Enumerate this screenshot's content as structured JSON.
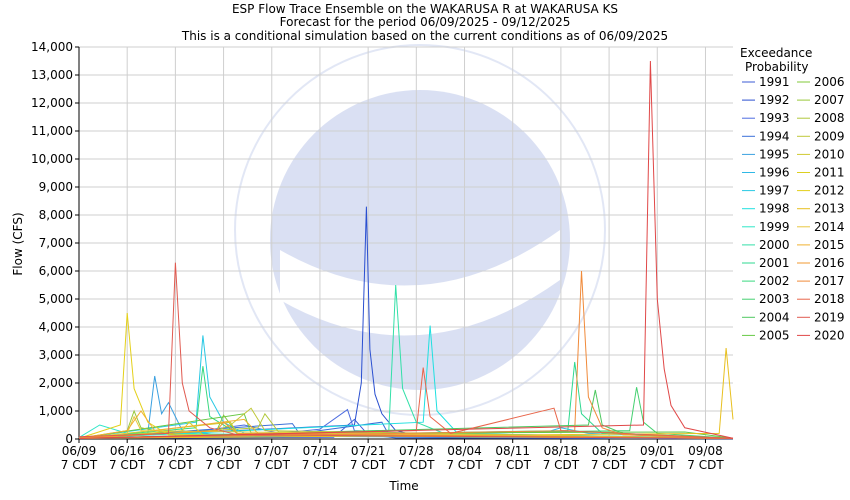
{
  "chart_data": {
    "type": "line",
    "title_lines": [
      "ESP Flow Trace Ensemble on the WAKARUSA R at WAKARUSA KS",
      "Forecast for the period 06/09/2025 - 09/12/2025",
      "This is a conditional simulation based on the current conditions as of 06/09/2025"
    ],
    "xlabel": "Time",
    "ylabel": "Flow (CFS)",
    "xlim": [
      "2025-06-09",
      "2025-09-12"
    ],
    "ylim": [
      0,
      14000
    ],
    "y_ticks": [
      0,
      1000,
      2000,
      3000,
      4000,
      5000,
      6000,
      7000,
      8000,
      9000,
      10000,
      11000,
      12000,
      13000,
      14000
    ],
    "y_tick_labels": [
      "0",
      "1,000",
      "2,000",
      "3,000",
      "4,000",
      "5,000",
      "6,000",
      "7,000",
      "8,000",
      "9,000",
      "10,000",
      "11,000",
      "12,000",
      "13,000",
      "14,000"
    ],
    "x_ticks": [
      {
        "date": "2025-06-09",
        "label": "06/09",
        "sub": "7 CDT"
      },
      {
        "date": "2025-06-16",
        "label": "06/16",
        "sub": "7 CDT"
      },
      {
        "date": "2025-06-23",
        "label": "06/23",
        "sub": "7 CDT"
      },
      {
        "date": "2025-06-30",
        "label": "06/30",
        "sub": "7 CDT"
      },
      {
        "date": "2025-07-07",
        "label": "07/07",
        "sub": "7 CDT"
      },
      {
        "date": "2025-07-14",
        "label": "07/14",
        "sub": "7 CDT"
      },
      {
        "date": "2025-07-21",
        "label": "07/21",
        "sub": "7 CDT"
      },
      {
        "date": "2025-07-28",
        "label": "07/28",
        "sub": "7 CDT"
      },
      {
        "date": "2025-08-04",
        "label": "08/04",
        "sub": "7 CDT"
      },
      {
        "date": "2025-08-11",
        "label": "08/11",
        "sub": "7 CDT"
      },
      {
        "date": "2025-08-18",
        "label": "08/18",
        "sub": "7 CDT"
      },
      {
        "date": "2025-08-25",
        "label": "08/25",
        "sub": "7 CDT"
      },
      {
        "date": "2025-09-01",
        "label": "09/01",
        "sub": "7 CDT"
      },
      {
        "date": "2025-09-08",
        "label": "09/08",
        "sub": "7 CDT"
      }
    ],
    "grid": true,
    "legend_title": [
      "Exceedance",
      "Probability"
    ],
    "legend_placement": "right",
    "series": [
      {
        "name": "1991",
        "color": "#3b5bd6",
        "points": [
          [
            "2025-06-09",
            20
          ],
          [
            "2025-07-16",
            60
          ],
          [
            "2025-07-19",
            700
          ],
          [
            "2025-07-21",
            150
          ],
          [
            "2025-07-25",
            40
          ],
          [
            "2025-09-12",
            10
          ]
        ]
      },
      {
        "name": "1992",
        "color": "#2a4fd0",
        "points": [
          [
            "2025-06-09",
            30
          ],
          [
            "2025-07-19",
            500
          ],
          [
            "2025-07-20",
            2000
          ],
          [
            "2025-07-20T18:00",
            8300
          ],
          [
            "2025-07-21T06:00",
            3200
          ],
          [
            "2025-07-22",
            1600
          ],
          [
            "2025-07-23",
            900
          ],
          [
            "2025-07-25",
            300
          ],
          [
            "2025-07-28",
            120
          ],
          [
            "2025-09-12",
            20
          ]
        ]
      },
      {
        "name": "1993",
        "color": "#4d6ce0",
        "points": [
          [
            "2025-06-09",
            40
          ],
          [
            "2025-06-27",
            300
          ],
          [
            "2025-07-03",
            500
          ],
          [
            "2025-07-08",
            200
          ],
          [
            "2025-07-14",
            350
          ],
          [
            "2025-07-18",
            1050
          ],
          [
            "2025-07-19",
            300
          ],
          [
            "2025-08-01",
            150
          ],
          [
            "2025-09-12",
            30
          ]
        ]
      },
      {
        "name": "1994",
        "color": "#3a6fd8",
        "points": [
          [
            "2025-06-09",
            20
          ],
          [
            "2025-07-10",
            550
          ],
          [
            "2025-07-11",
            200
          ],
          [
            "2025-07-23",
            600
          ],
          [
            "2025-07-24",
            150
          ],
          [
            "2025-09-12",
            20
          ]
        ]
      },
      {
        "name": "1995",
        "color": "#3aa0e0",
        "points": [
          [
            "2025-06-09",
            40
          ],
          [
            "2025-06-19",
            200
          ],
          [
            "2025-06-20",
            2250
          ],
          [
            "2025-06-21",
            900
          ],
          [
            "2025-06-22",
            1300
          ],
          [
            "2025-06-24",
            300
          ],
          [
            "2025-07-01",
            100
          ],
          [
            "2025-09-12",
            30
          ]
        ]
      },
      {
        "name": "1996",
        "color": "#2fb8e6",
        "points": [
          [
            "2025-06-09",
            20
          ],
          [
            "2025-08-16",
            250
          ],
          [
            "2025-08-18",
            400
          ],
          [
            "2025-08-22",
            200
          ],
          [
            "2025-09-12",
            20
          ]
        ]
      },
      {
        "name": "1997",
        "color": "#28c8e4",
        "points": [
          [
            "2025-06-09",
            30
          ],
          [
            "2025-06-26",
            600
          ],
          [
            "2025-06-27",
            3700
          ],
          [
            "2025-06-28",
            1500
          ],
          [
            "2025-06-30",
            600
          ],
          [
            "2025-07-03",
            200
          ],
          [
            "2025-09-12",
            20
          ]
        ]
      },
      {
        "name": "1998",
        "color": "#1fe0e0",
        "points": [
          [
            "2025-06-09",
            20
          ],
          [
            "2025-07-29",
            600
          ],
          [
            "2025-07-30",
            4050
          ],
          [
            "2025-07-31",
            1000
          ],
          [
            "2025-08-03",
            200
          ],
          [
            "2025-09-12",
            20
          ]
        ]
      },
      {
        "name": "1999",
        "color": "#2ee6c8",
        "points": [
          [
            "2025-06-09",
            50
          ],
          [
            "2025-06-12",
            500
          ],
          [
            "2025-06-16",
            200
          ],
          [
            "2025-09-12",
            30
          ]
        ]
      },
      {
        "name": "2000",
        "color": "#33e0a8",
        "points": [
          [
            "2025-06-09",
            20
          ],
          [
            "2025-07-24",
            300
          ],
          [
            "2025-07-25",
            5500
          ],
          [
            "2025-07-26",
            1800
          ],
          [
            "2025-07-28",
            600
          ],
          [
            "2025-08-01",
            200
          ],
          [
            "2025-09-12",
            30
          ]
        ]
      },
      {
        "name": "2001",
        "color": "#2fd890",
        "points": [
          [
            "2025-06-09",
            20
          ],
          [
            "2025-08-19",
            300
          ],
          [
            "2025-08-20",
            2750
          ],
          [
            "2025-08-21",
            900
          ],
          [
            "2025-08-24",
            200
          ],
          [
            "2025-09-12",
            20
          ]
        ]
      },
      {
        "name": "2002",
        "color": "#3ad880",
        "points": [
          [
            "2025-06-09",
            30
          ],
          [
            "2025-06-26",
            400
          ],
          [
            "2025-06-27",
            2600
          ],
          [
            "2025-06-28",
            800
          ],
          [
            "2025-07-02",
            200
          ],
          [
            "2025-09-12",
            20
          ]
        ]
      },
      {
        "name": "2003",
        "color": "#45d070",
        "points": [
          [
            "2025-06-09",
            30
          ],
          [
            "2025-08-28",
            300
          ],
          [
            "2025-08-29",
            1850
          ],
          [
            "2025-08-30",
            600
          ],
          [
            "2025-09-01",
            200
          ],
          [
            "2025-09-12",
            20
          ]
        ]
      },
      {
        "name": "2004",
        "color": "#4ec860",
        "points": [
          [
            "2025-06-09",
            20
          ],
          [
            "2025-08-22",
            500
          ],
          [
            "2025-08-23",
            1750
          ],
          [
            "2025-08-24",
            500
          ],
          [
            "2025-08-27",
            200
          ],
          [
            "2025-09-12",
            20
          ]
        ]
      },
      {
        "name": "2005",
        "color": "#66c845",
        "points": [
          [
            "2025-06-09",
            30
          ],
          [
            "2025-07-03",
            900
          ],
          [
            "2025-07-04",
            200
          ],
          [
            "2025-09-05",
            250
          ],
          [
            "2025-09-12",
            30
          ]
        ]
      },
      {
        "name": "2006",
        "color": "#80c83a",
        "points": [
          [
            "2025-06-09",
            20
          ],
          [
            "2025-06-29",
            300
          ],
          [
            "2025-06-30",
            850
          ],
          [
            "2025-07-02",
            200
          ],
          [
            "2025-09-12",
            20
          ]
        ]
      },
      {
        "name": "2007",
        "color": "#98c83a",
        "points": [
          [
            "2025-06-09",
            30
          ],
          [
            "2025-06-16",
            300
          ],
          [
            "2025-06-17",
            1000
          ],
          [
            "2025-06-18",
            400
          ],
          [
            "2025-06-23",
            150
          ],
          [
            "2025-09-12",
            20
          ]
        ]
      },
      {
        "name": "2008",
        "color": "#b0c83a",
        "points": [
          [
            "2025-06-09",
            20
          ],
          [
            "2025-07-05",
            400
          ],
          [
            "2025-07-06",
            900
          ],
          [
            "2025-07-08",
            250
          ],
          [
            "2025-09-12",
            20
          ]
        ]
      },
      {
        "name": "2009",
        "color": "#c0c83a",
        "points": [
          [
            "2025-06-09",
            30
          ],
          [
            "2025-06-29",
            300
          ],
          [
            "2025-07-01",
            500
          ],
          [
            "2025-07-04",
            1100
          ],
          [
            "2025-07-06",
            300
          ],
          [
            "2025-09-12",
            20
          ]
        ]
      },
      {
        "name": "2010",
        "color": "#d0c830",
        "points": [
          [
            "2025-06-09",
            20
          ],
          [
            "2025-07-01",
            600
          ],
          [
            "2025-07-02",
            200
          ],
          [
            "2025-09-12",
            20
          ]
        ]
      },
      {
        "name": "2011",
        "color": "#dccf20",
        "points": [
          [
            "2025-06-09",
            20
          ],
          [
            "2025-06-24",
            300
          ],
          [
            "2025-06-25",
            600
          ],
          [
            "2025-06-27",
            150
          ],
          [
            "2025-09-12",
            20
          ]
        ]
      },
      {
        "name": "2012",
        "color": "#e4d01a",
        "points": [
          [
            "2025-06-09",
            20
          ],
          [
            "2025-06-15",
            500
          ],
          [
            "2025-06-16",
            4500
          ],
          [
            "2025-06-17",
            1800
          ],
          [
            "2025-06-19",
            600
          ],
          [
            "2025-06-22",
            150
          ],
          [
            "2025-09-12",
            20
          ]
        ]
      },
      {
        "name": "2013",
        "color": "#e8c020",
        "points": [
          [
            "2025-06-09",
            20
          ],
          [
            "2025-09-10",
            200
          ],
          [
            "2025-09-11",
            3250
          ],
          [
            "2025-09-12",
            700
          ]
        ]
      },
      {
        "name": "2014",
        "color": "#e8c840",
        "points": [
          [
            "2025-06-09",
            30
          ],
          [
            "2025-06-16",
            200
          ],
          [
            "2025-06-17",
            800
          ],
          [
            "2025-06-18",
            300
          ],
          [
            "2025-09-12",
            20
          ]
        ]
      },
      {
        "name": "2015",
        "color": "#f0b030",
        "points": [
          [
            "2025-06-09",
            30
          ],
          [
            "2025-06-16",
            300
          ],
          [
            "2025-06-18",
            1000
          ],
          [
            "2025-06-20",
            300
          ],
          [
            "2025-07-03",
            700
          ],
          [
            "2025-07-05",
            200
          ],
          [
            "2025-09-12",
            20
          ]
        ]
      },
      {
        "name": "2016",
        "color": "#f09a30",
        "points": [
          [
            "2025-06-09",
            20
          ],
          [
            "2025-06-29",
            300
          ],
          [
            "2025-06-30",
            600
          ],
          [
            "2025-07-02",
            200
          ],
          [
            "2025-09-12",
            20
          ]
        ]
      },
      {
        "name": "2017",
        "color": "#f08a3a",
        "points": [
          [
            "2025-06-09",
            20
          ],
          [
            "2025-08-20",
            300
          ],
          [
            "2025-08-21",
            6000
          ],
          [
            "2025-08-22",
            1500
          ],
          [
            "2025-08-24",
            400
          ],
          [
            "2025-08-27",
            150
          ],
          [
            "2025-09-12",
            20
          ]
        ]
      },
      {
        "name": "2018",
        "color": "#e8654a",
        "points": [
          [
            "2025-06-09",
            20
          ],
          [
            "2025-07-28",
            300
          ],
          [
            "2025-07-29",
            2550
          ],
          [
            "2025-07-30",
            800
          ],
          [
            "2025-08-02",
            200
          ],
          [
            "2025-08-17",
            1100
          ],
          [
            "2025-08-18",
            300
          ],
          [
            "2025-09-12",
            20
          ]
        ]
      },
      {
        "name": "2019",
        "color": "#e05a50",
        "points": [
          [
            "2025-06-09",
            80
          ],
          [
            "2025-06-22",
            200
          ],
          [
            "2025-06-23",
            6300
          ],
          [
            "2025-06-24",
            2000
          ],
          [
            "2025-06-25",
            1000
          ],
          [
            "2025-06-28",
            400
          ],
          [
            "2025-07-02",
            150
          ],
          [
            "2025-09-12",
            20
          ]
        ]
      },
      {
        "name": "2020",
        "color": "#e04848",
        "points": [
          [
            "2025-06-09",
            20
          ],
          [
            "2025-08-30",
            500
          ],
          [
            "2025-08-31",
            13500
          ],
          [
            "2025-09-01",
            5000
          ],
          [
            "2025-09-02",
            2500
          ],
          [
            "2025-09-03",
            1200
          ],
          [
            "2025-09-05",
            400
          ],
          [
            "2025-09-12",
            30
          ]
        ]
      }
    ]
  }
}
